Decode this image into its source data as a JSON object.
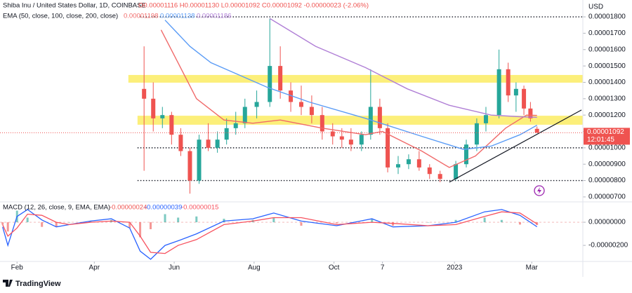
{
  "header": {
    "symbol": "Shiba Inu / United States Dollar, 1D, COINBASE",
    "ohlc": "O0.00001116 H0.00001130 L0.00001092 C0.00001092 -0.00000023 (-2.06%)",
    "ema_label": "EMA (50, close, 100, close, 200, close)",
    "ema_values": [
      "0.00001198",
      "0.00001138",
      "0.00001186"
    ],
    "macd_label": "MACD (12, 26, close, 9, EMA, EMA)",
    "macd_values": [
      "-0.00000024",
      "-0.00000039",
      "-0.00000015"
    ],
    "currency": "USD",
    "last_price": "0.00001092",
    "countdown": "12:01:45"
  },
  "footer": {
    "brand": "TradingView"
  },
  "chart_data": [
    {
      "type": "candlestick",
      "xlim": [
        4,
        449
      ],
      "ylim": [
        6.74e-06,
        1.903e-05
      ],
      "grid": false,
      "up_color": "#26a69a",
      "down_color": "#ef5350",
      "yticks": [
        {
          "value": 1.8e-05,
          "label": "0.00001800"
        },
        {
          "value": 1.7e-05,
          "label": "0.00001700"
        },
        {
          "value": 1.6e-05,
          "label": "0.00001600"
        },
        {
          "value": 1.5e-05,
          "label": "0.00001500"
        },
        {
          "value": 1.4e-05,
          "label": "0.00001400"
        },
        {
          "value": 1.3e-05,
          "label": "0.00001300"
        },
        {
          "value": 1.2e-05,
          "label": "0.00001200"
        },
        {
          "value": 1.1e-05,
          "label": "0.00001100"
        },
        {
          "value": 1e-05,
          "label": "0.00001000"
        },
        {
          "value": 9e-06,
          "label": "0.00000900"
        },
        {
          "value": 8e-06,
          "label": "0.00000800"
        },
        {
          "value": 7e-06,
          "label": "0.00000700"
        }
      ],
      "x": [
        114,
        121,
        128,
        135,
        142,
        149,
        156,
        163,
        170,
        177,
        184,
        191,
        200,
        210,
        218,
        226,
        234,
        242,
        250,
        258,
        265,
        272,
        280,
        287,
        294,
        300,
        308,
        316,
        324,
        332,
        340,
        352,
        360,
        368,
        375,
        385,
        392,
        398,
        404,
        409,
        414
      ],
      "open": [
        1.36e-05,
        1.3e-05,
        1.18e-05,
        1.2e-05,
        1.08e-05,
        9.8e-06,
        8e-06,
        1.05e-05,
        1e-05,
        1.05e-05,
        1.12e-05,
        1.15e-05,
        1.25e-05,
        1.28e-05,
        1.5e-05,
        1.35e-05,
        1.28e-05,
        1.25e-05,
        1.2e-05,
        1.1e-05,
        1.07e-05,
        1.05e-05,
        1.02e-05,
        1.08e-05,
        1.25e-05,
        1.12e-05,
        8.8e-06,
        9e-06,
        9.3e-06,
        8.8e-06,
        8.4e-06,
        8.1e-06,
        9e-06,
        1.02e-05,
        1.15e-05,
        1.2e-05,
        1.48e-05,
        1.32e-05,
        1.36e-05,
        1.24e-05,
        1.116e-05
      ],
      "high": [
        1.62e-05,
        1.4e-05,
        1.25e-05,
        1.22e-05,
        1.12e-05,
        1e-05,
        1.08e-05,
        1.15e-05,
        1.1e-05,
        1.18e-05,
        1.22e-05,
        1.3e-05,
        1.35e-05,
        1.79e-05,
        1.62e-05,
        1.4e-05,
        1.38e-05,
        1.32e-05,
        1.25e-05,
        1.15e-05,
        1.12e-05,
        1.12e-05,
        1.1e-05,
        1.48e-05,
        1.3e-05,
        1.15e-05,
        9.5e-06,
        9.6e-06,
        9.8e-06,
        9e-06,
        8.6e-06,
        9.2e-06,
        1.05e-05,
        1.18e-05,
        1.25e-05,
        1.6e-05,
        1.52e-05,
        1.4e-05,
        1.38e-05,
        1.28e-05,
        1.13e-05
      ],
      "low": [
        8.6e-06,
        1.1e-05,
        1.12e-05,
        1.02e-05,
        9.5e-06,
        7.2e-06,
        7.8e-06,
        9.8e-06,
        9.7e-06,
        1.02e-05,
        1.08e-05,
        1.12e-05,
        1.18e-05,
        1.25e-05,
        1.3e-05,
        1.22e-05,
        1.2e-05,
        1.15e-05,
        1.05e-05,
        1.02e-05,
        1e-05,
        9.8e-06,
        9.8e-06,
        1.05e-05,
        1.08e-05,
        8.5e-06,
        8.4e-06,
        8.7e-06,
        8.6e-06,
        8.1e-06,
        7.9e-06,
        8e-06,
        8.8e-06,
        9.8e-06,
        1.1e-05,
        1.18e-05,
        1.28e-05,
        1.22e-05,
        1.2e-05,
        1.16e-05,
        1.092e-05
      ],
      "close": [
        1.3e-05,
        1.18e-05,
        1.2e-05,
        1.08e-05,
        9.8e-06,
        8e-06,
        1.05e-05,
        1e-05,
        1.05e-05,
        1.12e-05,
        1.15e-05,
        1.25e-05,
        1.28e-05,
        1.5e-05,
        1.35e-05,
        1.28e-05,
        1.25e-05,
        1.2e-05,
        1.1e-05,
        1.07e-05,
        1.05e-05,
        1.02e-05,
        1.08e-05,
        1.25e-05,
        1.12e-05,
        8.8e-06,
        9e-06,
        9.3e-06,
        8.8e-06,
        8.4e-06,
        8.1e-06,
        9e-06,
        1.02e-05,
        1.15e-05,
        1.2e-05,
        1.48e-05,
        1.32e-05,
        1.36e-05,
        1.24e-05,
        1.18e-05,
        1.092e-05
      ],
      "series": [
        {
          "name": "EMA 50",
          "color": "#f06a6a",
          "x": [
            127,
            138,
            154,
            175,
            197,
            218,
            250,
            283,
            296,
            326,
            347,
            367,
            390,
            406,
            414
          ],
          "values": [
            1.72e-05,
            1.55e-05,
            1.3e-05,
            1.17e-05,
            1.15e-05,
            1.17e-05,
            1.12e-05,
            1.08e-05,
            1.1e-05,
            9.8e-06,
            8.8e-06,
            9.5e-06,
            1.12e-05,
            1.2e-05,
            1.198e-05
          ]
        },
        {
          "name": "EMA 100",
          "color": "#5b9cf6",
          "x": [
            130,
            149,
            165,
            208,
            240,
            283,
            326,
            358,
            379,
            401,
            414
          ],
          "values": [
            1.78e-05,
            1.62e-05,
            1.52e-05,
            1.37e-05,
            1.28e-05,
            1.18e-05,
            1.07e-05,
            9.9e-06,
            1.01e-05,
            1.08e-05,
            1.138e-05
          ]
        },
        {
          "name": "EMA 200",
          "color": "#b07fd6",
          "x": [
            210,
            245,
            283,
            315,
            347,
            379,
            401,
            414
          ],
          "values": [
            1.79e-05,
            1.62e-05,
            1.49e-05,
            1.36e-05,
            1.26e-05,
            1.2e-05,
            1.19e-05,
            1.186e-05
          ]
        }
      ],
      "zones": [
        {
          "start": 102,
          "low": 1.398e-05,
          "high": 1.445e-05
        },
        {
          "start": 109,
          "low": 1.141e-05,
          "high": 1.196e-05
        }
      ],
      "levels": [
        {
          "start": 111,
          "value": 1.8e-05
        },
        {
          "start": 109,
          "value": 1e-05
        },
        {
          "start": 109,
          "value": 8e-06
        }
      ],
      "trendline": {
        "x": [
          347,
          448
        ],
        "values": [
          7.9e-06,
          1.231e-05
        ]
      }
    },
    {
      "type": "line",
      "xlim": [
        4,
        449
      ],
      "ylim": [
        -3.33e-06,
        1.64e-06
      ],
      "yticks": [
        {
          "value": 0,
          "label": "0.00000000"
        },
        {
          "value": -2e-06,
          "label": "-0.00000200"
        }
      ],
      "xticks": [
        {
          "value": 17,
          "label": "Feb"
        },
        {
          "value": 76,
          "label": "Apr"
        },
        {
          "value": 137,
          "label": "Jun"
        },
        {
          "value": 198,
          "label": "Aug"
        },
        {
          "value": 259,
          "label": "Oct"
        },
        {
          "value": 296,
          "label": "7"
        },
        {
          "value": 351,
          "label": "2023"
        },
        {
          "value": 410,
          "label": "Mar"
        }
      ],
      "x": [
        6,
        10,
        17,
        25,
        36,
        47,
        57,
        73,
        89,
        103,
        111,
        119,
        130,
        140,
        154,
        175,
        197,
        213,
        234,
        261,
        288,
        304,
        331,
        352,
        374,
        387,
        401,
        414
      ],
      "histogram": {
        "up_color": "#26a69a",
        "down_color": "#ef5350",
        "values": [
          -2e-07,
          -8e-07,
          1e-06,
          4e-07,
          -4e-07,
          -4e-07,
          0,
          1e-07,
          2e-07,
          -5e-07,
          -1.3e-06,
          -6e-07,
          7e-07,
          4e-07,
          5e-07,
          3e-07,
          2e-07,
          4e-07,
          -3e-07,
          -1e-07,
          3e-07,
          -3e-07,
          0,
          2e-07,
          4e-07,
          2e-07,
          -2e-07,
          -2.4e-07
        ]
      },
      "series": [
        {
          "name": "MACD",
          "color": "#2962ff",
          "values": [
            -4e-07,
            -2e-06,
            5e-07,
            1.1e-06,
            2e-07,
            -4e-07,
            -2e-07,
            1e-07,
            3e-07,
            -5e-07,
            -2.5e-06,
            -3.2e-06,
            -2e-06,
            -1.6e-06,
            -1e-06,
            1e-07,
            3e-07,
            8e-07,
            1e-07,
            -3e-07,
            3e-07,
            -4e-07,
            -3e-07,
            0,
            9e-07,
            1.1e-06,
            6e-07,
            -3.9e-07
          ]
        },
        {
          "name": "Signal",
          "color": "#f7525f",
          "values": [
            -2e-07,
            -1.2e-06,
            -5e-07,
            7e-07,
            6e-07,
            0,
            -2e-07,
            0,
            1e-07,
            0,
            -1.2e-06,
            -2.6e-06,
            -2.7e-06,
            -2e-06,
            -1.5e-06,
            -2e-07,
            1e-07,
            4e-07,
            4e-07,
            -2e-07,
            0,
            -1e-07,
            -3e-07,
            -2e-07,
            5e-07,
            9e-07,
            8e-07,
            -1.5e-07
          ]
        }
      ]
    }
  ]
}
